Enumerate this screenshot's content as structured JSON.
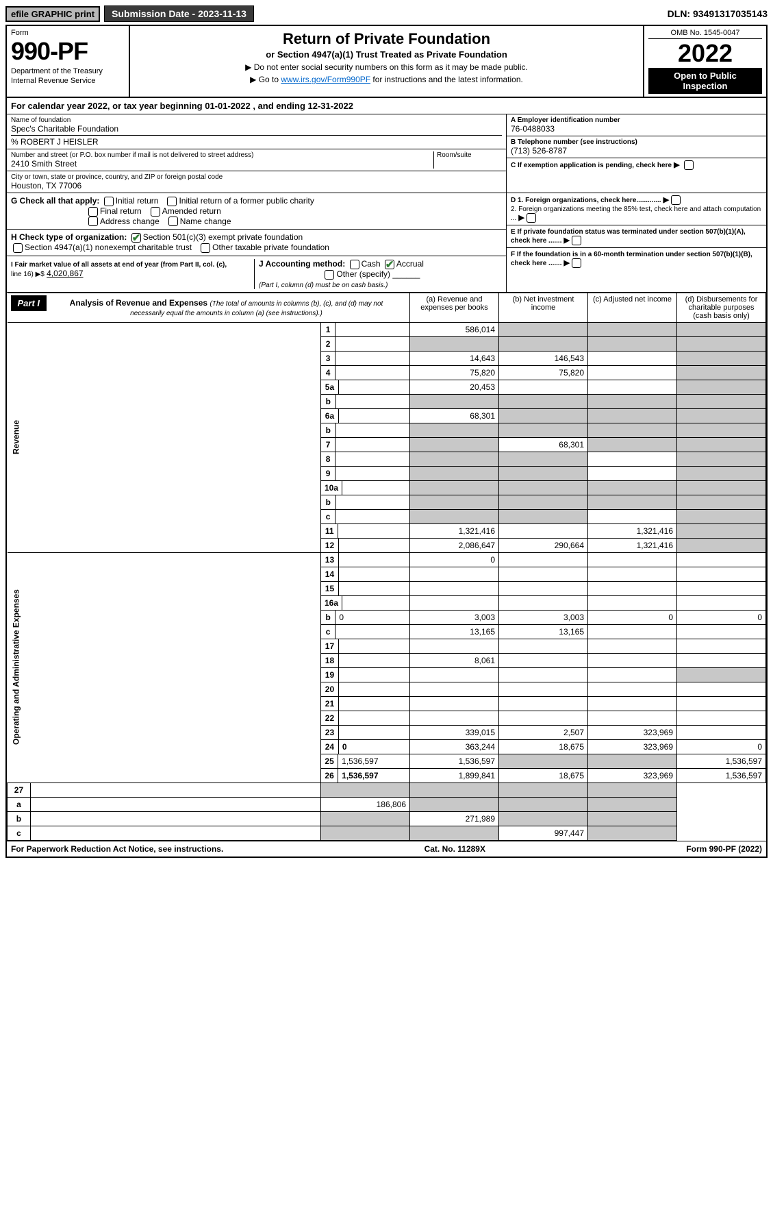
{
  "topbar": {
    "efile": "efile GRAPHIC print",
    "subdate_label": "Submission Date - 2023-11-13",
    "dln": "DLN: 93491317035143"
  },
  "header": {
    "form_label": "Form",
    "form_no": "990-PF",
    "dept1": "Department of the Treasury",
    "dept2": "Internal Revenue Service",
    "title": "Return of Private Foundation",
    "subtitle": "or Section 4947(a)(1) Trust Treated as Private Foundation",
    "instr1": "▶ Do not enter social security numbers on this form as it may be made public.",
    "instr2_pre": "▶ Go to ",
    "instr2_link": "www.irs.gov/Form990PF",
    "instr2_post": " for instructions and the latest information.",
    "omb": "OMB No. 1545-0047",
    "year": "2022",
    "open_pub": "Open to Public Inspection"
  },
  "calyear": "For calendar year 2022, or tax year beginning 01-01-2022                      , and ending 12-31-2022",
  "entity": {
    "name_label": "Name of foundation",
    "name": "Spec's Charitable Foundation",
    "care_of": "% ROBERT J HEISLER",
    "addr_label": "Number and street (or P.O. box number if mail is not delivered to street address)",
    "addr": "2410 Smith Street",
    "room_label": "Room/suite",
    "city_label": "City or town, state or province, country, and ZIP or foreign postal code",
    "city": "Houston, TX  77006",
    "ein_label": "A Employer identification number",
    "ein": "76-0488033",
    "phone_label": "B Telephone number (see instructions)",
    "phone": "(713) 526-8787",
    "c_label": "C If exemption application is pending, check here",
    "d1": "D 1. Foreign organizations, check here.............",
    "d2": "2. Foreign organizations meeting the 85% test, check here and attach computation ...",
    "e_label": "E  If private foundation status was terminated under section 507(b)(1)(A), check here .......",
    "f_label": "F  If the foundation is in a 60-month termination under section 507(b)(1)(B), check here ......."
  },
  "g": {
    "label": "G Check all that apply:",
    "opts": [
      "Initial return",
      "Final return",
      "Address change",
      "Initial return of a former public charity",
      "Amended return",
      "Name change"
    ]
  },
  "h": {
    "label": "H Check type of organization:",
    "opt1": "Section 501(c)(3) exempt private foundation",
    "opt2": "Section 4947(a)(1) nonexempt charitable trust",
    "opt3": "Other taxable private foundation"
  },
  "i": {
    "label": "I Fair market value of all assets at end of year (from Part II, col. (c),",
    "line": "line 16) ▶$",
    "value": "4,020,867"
  },
  "j": {
    "label": "J Accounting method:",
    "cash": "Cash",
    "accrual": "Accrual",
    "other": "Other (specify)",
    "note": "(Part I, column (d) must be on cash basis.)"
  },
  "part1": {
    "badge": "Part I",
    "title": "Analysis of Revenue and Expenses",
    "title_note": "(The total of amounts in columns (b), (c), and (d) may not necessarily equal the amounts in column (a) (see instructions).)",
    "col_a": "(a)   Revenue and expenses per books",
    "col_b": "(b)   Net investment income",
    "col_c": "(c)   Adjusted net income",
    "col_d": "(d)  Disbursements for charitable purposes (cash basis only)"
  },
  "side": {
    "revenue": "Revenue",
    "expenses": "Operating and Administrative Expenses"
  },
  "rows": [
    {
      "n": "1",
      "d": "",
      "a": "586,014",
      "b": "",
      "c": "",
      "shade_bcd": true
    },
    {
      "n": "2",
      "d": "",
      "a": "",
      "b": "",
      "c": "",
      "shade_all": true
    },
    {
      "n": "3",
      "d": "",
      "a": "14,643",
      "b": "146,543",
      "c": "",
      "shade_d": true
    },
    {
      "n": "4",
      "d": "",
      "a": "75,820",
      "b": "75,820",
      "c": "",
      "shade_d": true
    },
    {
      "n": "5a",
      "d": "",
      "a": "20,453",
      "b": "",
      "c": "",
      "shade_d": true
    },
    {
      "n": "b",
      "d": "",
      "a": "",
      "b": "",
      "c": "",
      "shade_all": true
    },
    {
      "n": "6a",
      "d": "",
      "a": "68,301",
      "b": "",
      "c": "",
      "shade_bcd": true
    },
    {
      "n": "b",
      "d": "",
      "a": "",
      "b": "",
      "c": "",
      "shade_all": true
    },
    {
      "n": "7",
      "d": "",
      "a": "",
      "b": "68,301",
      "c": "",
      "shade_acd": true
    },
    {
      "n": "8",
      "d": "",
      "a": "",
      "b": "",
      "c": "",
      "shade_abd": true
    },
    {
      "n": "9",
      "d": "",
      "a": "",
      "b": "",
      "c": "",
      "shade_abd": true
    },
    {
      "n": "10a",
      "d": "",
      "a": "",
      "b": "",
      "c": "",
      "shade_all": true
    },
    {
      "n": "b",
      "d": "",
      "a": "",
      "b": "",
      "c": "",
      "shade_all": true
    },
    {
      "n": "c",
      "d": "",
      "a": "",
      "b": "",
      "c": "",
      "shade_abd": true
    },
    {
      "n": "11",
      "d": "",
      "a": "1,321,416",
      "b": "",
      "c": "1,321,416",
      "shade_d": true
    },
    {
      "n": "12",
      "d": "",
      "a": "2,086,647",
      "b": "290,664",
      "c": "1,321,416",
      "shade_d": true,
      "bold": true
    }
  ],
  "exp_rows": [
    {
      "n": "13",
      "d": "",
      "a": "0",
      "b": "",
      "c": ""
    },
    {
      "n": "14",
      "d": "",
      "a": "",
      "b": "",
      "c": ""
    },
    {
      "n": "15",
      "d": "",
      "a": "",
      "b": "",
      "c": ""
    },
    {
      "n": "16a",
      "d": "",
      "a": "",
      "b": "",
      "c": ""
    },
    {
      "n": "b",
      "d": "0",
      "a": "3,003",
      "b": "3,003",
      "c": "0"
    },
    {
      "n": "c",
      "d": "",
      "a": "13,165",
      "b": "13,165",
      "c": ""
    },
    {
      "n": "17",
      "d": "",
      "a": "",
      "b": "",
      "c": ""
    },
    {
      "n": "18",
      "d": "",
      "a": "8,061",
      "b": "",
      "c": ""
    },
    {
      "n": "19",
      "d": "",
      "a": "",
      "b": "",
      "c": "",
      "shade_d": true
    },
    {
      "n": "20",
      "d": "",
      "a": "",
      "b": "",
      "c": ""
    },
    {
      "n": "21",
      "d": "",
      "a": "",
      "b": "",
      "c": ""
    },
    {
      "n": "22",
      "d": "",
      "a": "",
      "b": "",
      "c": ""
    },
    {
      "n": "23",
      "d": "",
      "a": "339,015",
      "b": "2,507",
      "c": "323,969"
    },
    {
      "n": "24",
      "d": "0",
      "a": "363,244",
      "b": "18,675",
      "c": "323,969",
      "bold": true
    },
    {
      "n": "25",
      "d": "1,536,597",
      "a": "1,536,597",
      "b": "",
      "c": "",
      "shade_bc": true
    },
    {
      "n": "26",
      "d": "1,536,597",
      "a": "1,899,841",
      "b": "18,675",
      "c": "323,969",
      "bold": true
    }
  ],
  "bottom_rows": [
    {
      "n": "27",
      "d": "",
      "a": "",
      "b": "",
      "c": "",
      "shade_all": true
    },
    {
      "n": "a",
      "d": "",
      "a": "186,806",
      "b": "",
      "c": "",
      "shade_bcd": true,
      "bold": true
    },
    {
      "n": "b",
      "d": "",
      "a": "",
      "b": "271,989",
      "c": "",
      "shade_acd": true,
      "bold": true
    },
    {
      "n": "c",
      "d": "",
      "a": "",
      "b": "",
      "c": "997,447",
      "shade_abd": true,
      "bold": true
    }
  ],
  "footer": {
    "left": "For Paperwork Reduction Act Notice, see instructions.",
    "mid": "Cat. No. 11289X",
    "right": "Form 990-PF (2022)"
  },
  "colors": {
    "shade": "#c8c8c8",
    "link": "#0066cc",
    "check": "#2e7d32"
  }
}
